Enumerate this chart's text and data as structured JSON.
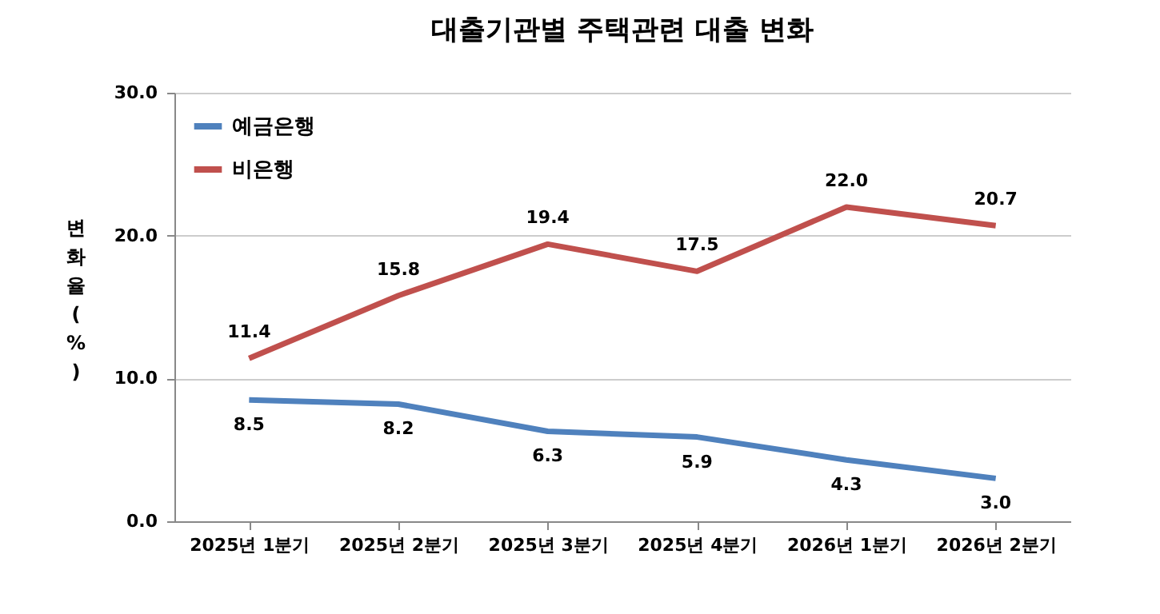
{
  "chart_data": {
    "type": "line",
    "title": "대출기관별 주택관련 대출 변화",
    "ylabel": "변화율(%)",
    "categories": [
      "2025년 1분기",
      "2025년 2분기",
      "2025년 3분기",
      "2025년 4분기",
      "2026년 1분기",
      "2026년 2분기"
    ],
    "series": [
      {
        "name": "예금은행",
        "color": "#4f81bd",
        "values": [
          8.5,
          8.2,
          6.3,
          5.9,
          4.3,
          3.0
        ],
        "value_labels": [
          "8.5",
          "8.2",
          "6.3",
          "5.9",
          "4.3",
          "3.0"
        ]
      },
      {
        "name": "비은행",
        "color": "#c0504d",
        "values": [
          11.4,
          15.8,
          19.4,
          17.5,
          22.0,
          20.7
        ],
        "value_labels": [
          "11.4",
          "15.8",
          "19.4",
          "17.5",
          "22.0",
          "20.7"
        ]
      }
    ],
    "ylim": [
      0,
      30
    ],
    "yticks": [
      {
        "value": 0,
        "label": "0.0"
      },
      {
        "value": 10,
        "label": "10.0"
      },
      {
        "value": 20,
        "label": "20.0"
      },
      {
        "value": 30,
        "label": "30.0"
      }
    ],
    "grid": "y",
    "legend": "top left",
    "marker": "none",
    "line_style": "solid"
  }
}
